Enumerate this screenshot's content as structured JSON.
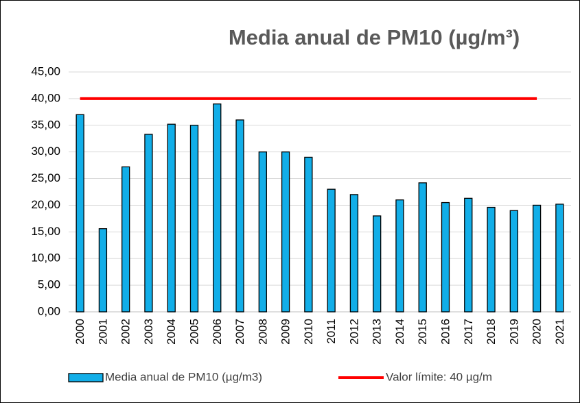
{
  "chart_data": {
    "type": "bar",
    "title": "Media anual  de PM10 (µg/m³)",
    "categories": [
      "2000",
      "2001",
      "2002",
      "2003",
      "2004",
      "2005",
      "2006",
      "2007",
      "2008",
      "2009",
      "2010",
      "2011",
      "2012",
      "2013",
      "2014",
      "2015",
      "2016",
      "2017",
      "2018",
      "2019",
      "2020",
      "2021"
    ],
    "series": [
      {
        "name": "Media anual  de PM10 (µg/m3)",
        "color": "#12aee8",
        "type": "bar",
        "values": [
          37.0,
          15.6,
          27.2,
          33.3,
          35.2,
          35.0,
          39.0,
          36.0,
          30.0,
          30.0,
          29.0,
          23.0,
          22.0,
          18.0,
          21.0,
          24.2,
          20.5,
          21.3,
          19.6,
          19.0,
          20.0,
          20.2
        ]
      },
      {
        "name": "Valor límite: 40 µg/m",
        "color": "#ff0000",
        "type": "line",
        "values": [
          40,
          40,
          40,
          40,
          40,
          40,
          40,
          40,
          40,
          40,
          40,
          40,
          40,
          40,
          40,
          40,
          40,
          40,
          40,
          40,
          40,
          null
        ]
      }
    ],
    "ylim": [
      0,
      45
    ],
    "yticks": [
      {
        "value": 0,
        "label": "0,00"
      },
      {
        "value": 5,
        "label": "5,00"
      },
      {
        "value": 10,
        "label": "10,00"
      },
      {
        "value": 15,
        "label": "15,00"
      },
      {
        "value": 20,
        "label": "20,00"
      },
      {
        "value": 25,
        "label": "25,00"
      },
      {
        "value": 30,
        "label": "30,00"
      },
      {
        "value": 35,
        "label": "35,00"
      },
      {
        "value": 40,
        "label": "40,00"
      },
      {
        "value": 45,
        "label": "45,00"
      }
    ],
    "grid": true,
    "legend": "bottom"
  }
}
